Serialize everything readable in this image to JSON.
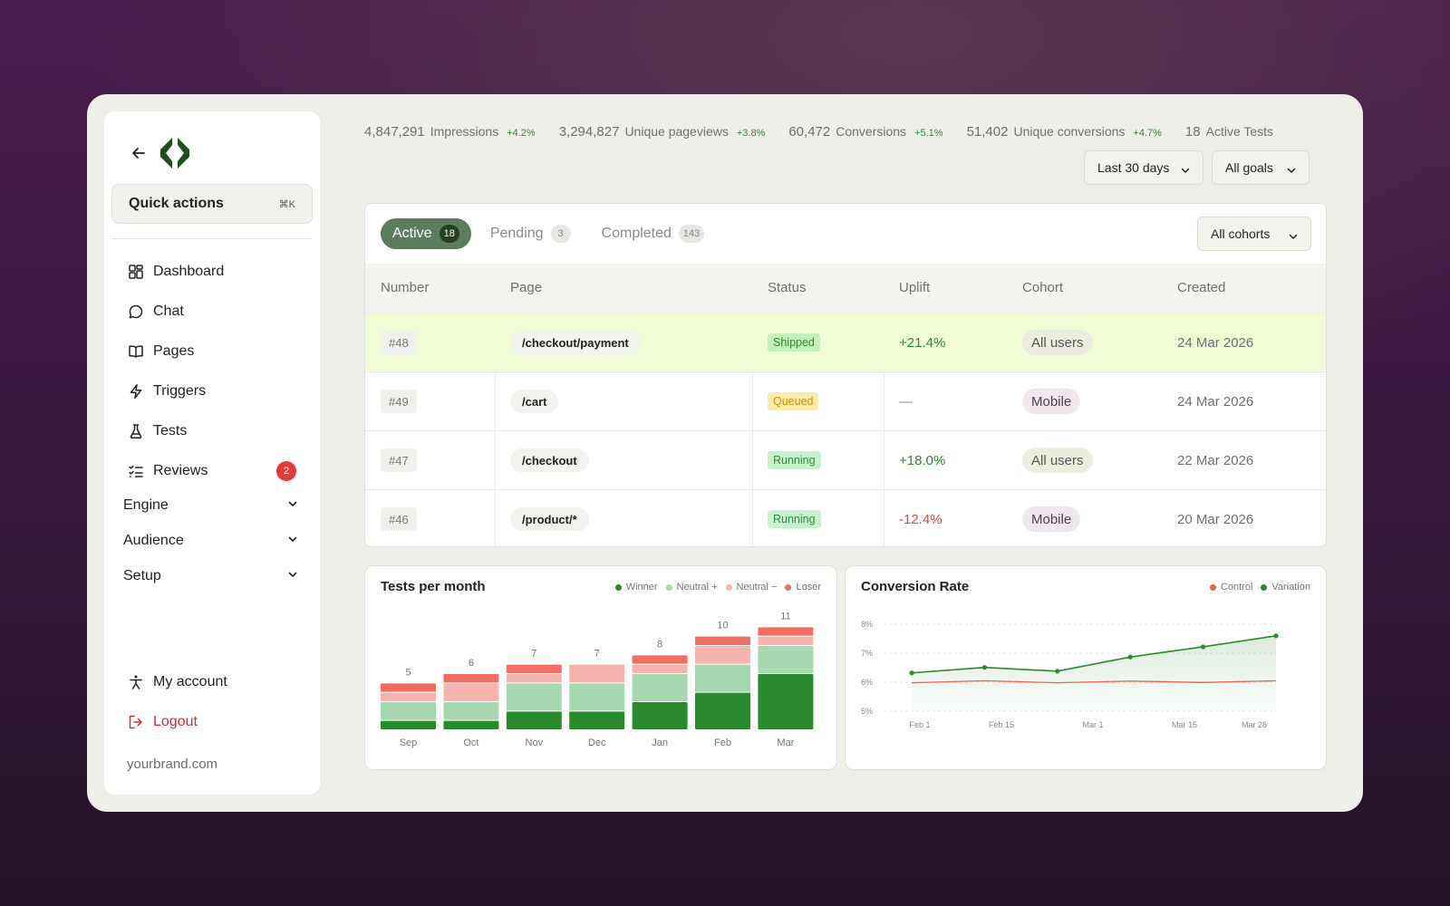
{
  "sidebar": {
    "quick_actions": {
      "label": "Quick actions",
      "shortcut": "⌘K"
    },
    "nav": [
      {
        "label": "Dashboard",
        "icon": "dashboard-icon"
      },
      {
        "label": "Chat",
        "icon": "chat-icon"
      },
      {
        "label": "Pages",
        "icon": "book-icon"
      },
      {
        "label": "Triggers",
        "icon": "lightning-icon"
      },
      {
        "label": "Tests",
        "icon": "flask-icon"
      },
      {
        "label": "Reviews",
        "icon": "checklist-icon",
        "badge": "2"
      }
    ],
    "groups": [
      "Engine",
      "Audience",
      "Setup"
    ],
    "account": {
      "my_account": "My account",
      "logout": "Logout"
    },
    "domain": "yourbrand.com",
    "colors": {
      "logo": "#1f4e1f",
      "logout": "#d12f2f"
    }
  },
  "stats": [
    {
      "value": "4,847,291",
      "label": "Impressions",
      "change": "+4.2%"
    },
    {
      "value": "3,294,827",
      "label": "Unique pageviews",
      "change": "+3.8%"
    },
    {
      "value": "60,472",
      "label": "Conversions",
      "change": "+5.1%"
    },
    {
      "value": "51,402",
      "label": "Unique conversions",
      "change": "+4.7%"
    },
    {
      "value": "18",
      "label": "Active Tests",
      "change": ""
    }
  ],
  "filters": {
    "range": "Last 30 days",
    "goals": "All goals",
    "cohorts": "All cohorts"
  },
  "tabs": [
    {
      "label": "Active",
      "count": "18"
    },
    {
      "label": "Pending",
      "count": "3"
    },
    {
      "label": "Completed",
      "count": "143"
    }
  ],
  "table": {
    "columns": [
      "Number",
      "Page",
      "Status",
      "Uplift",
      "Cohort",
      "Created"
    ],
    "rows": [
      {
        "number": "#48",
        "page": "/checkout/payment",
        "status": "Shipped",
        "uplift": "+21.4%",
        "cohort": "All users",
        "created": "24 Mar 2026"
      },
      {
        "number": "#49",
        "page": "/cart",
        "status": "Queued",
        "uplift": "—",
        "cohort": "Mobile",
        "created": "24 Mar 2026"
      },
      {
        "number": "#47",
        "page": "/checkout",
        "status": "Running",
        "uplift": "+18.0%",
        "cohort": "All users",
        "created": "22 Mar 2026"
      },
      {
        "number": "#46",
        "page": "/product/*",
        "status": "Running",
        "uplift": "-12.4%",
        "cohort": "Mobile",
        "created": "20 Mar 2026"
      }
    ]
  },
  "chart_data": [
    {
      "type": "bar",
      "title": "Tests per month",
      "stacked": true,
      "categories": [
        "Sep",
        "Oct",
        "Nov",
        "Dec",
        "Jan",
        "Feb",
        "Mar"
      ],
      "totals": [
        "5",
        "6",
        "7",
        "7",
        "8",
        "10",
        "11"
      ],
      "ylim": [
        0,
        12
      ],
      "legend_position": "top-right",
      "series": [
        {
          "name": "Winner",
          "color": "#2a8a2e",
          "values": [
            1,
            1,
            2,
            2,
            3,
            4,
            6
          ]
        },
        {
          "name": "Neutral +",
          "color": "#a7d9b0",
          "values": [
            2,
            2,
            3,
            3,
            3,
            3,
            3
          ]
        },
        {
          "name": "Neutral −",
          "color": "#f5b5ae",
          "values": [
            1,
            2,
            1,
            2,
            1,
            2,
            1
          ]
        },
        {
          "name": "Loser",
          "color": "#f26e62",
          "values": [
            1,
            1,
            1,
            0,
            1,
            1,
            1
          ]
        }
      ]
    },
    {
      "type": "line",
      "title": "Conversion Rate",
      "ylim": [
        5,
        8
      ],
      "y_ticks": [
        "5%",
        "6%",
        "7%",
        "8%"
      ],
      "x_ticks": [
        "Feb 1",
        "Feb 15",
        "Mar 1",
        "Mar 15",
        "Mar 28"
      ],
      "legend_position": "top-right",
      "series": [
        {
          "name": "Control",
          "color": "#f0604f",
          "values": [
            5.98,
            6.05,
            5.98,
            6.04,
            5.99,
            6.05
          ]
        },
        {
          "name": "Variation",
          "color": "#2a8a2e",
          "values": [
            6.32,
            6.51,
            6.38,
            6.87,
            7.22,
            7.6
          ]
        }
      ]
    }
  ]
}
